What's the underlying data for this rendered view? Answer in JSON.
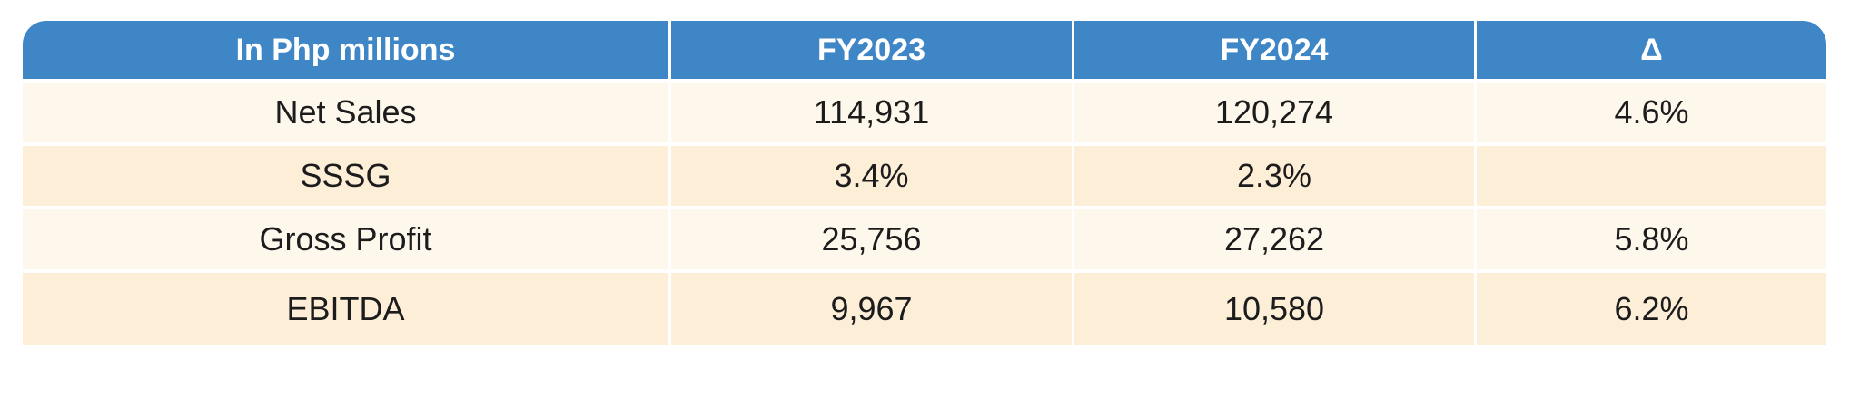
{
  "table": {
    "headers": [
      "In Php millions",
      "FY2023",
      "FY2024",
      "Δ"
    ],
    "rows": [
      {
        "label": "Net Sales",
        "fy2023": "114,931",
        "fy2024": "120,274",
        "delta": "4.6%"
      },
      {
        "label": "SSSG",
        "fy2023": "3.4%",
        "fy2024": "2.3%",
        "delta": ""
      },
      {
        "label": "Gross Profit",
        "fy2023": "25,756",
        "fy2024": "27,262",
        "delta": "5.8%"
      },
      {
        "label": "EBITDA",
        "fy2023": "9,967",
        "fy2024": "10,580",
        "delta": "6.2%"
      }
    ]
  },
  "colors": {
    "header_bg": "#3f86c6",
    "header_text": "#ffffff",
    "row_light": "#fef7ec",
    "row_dark": "#fdeed7"
  }
}
